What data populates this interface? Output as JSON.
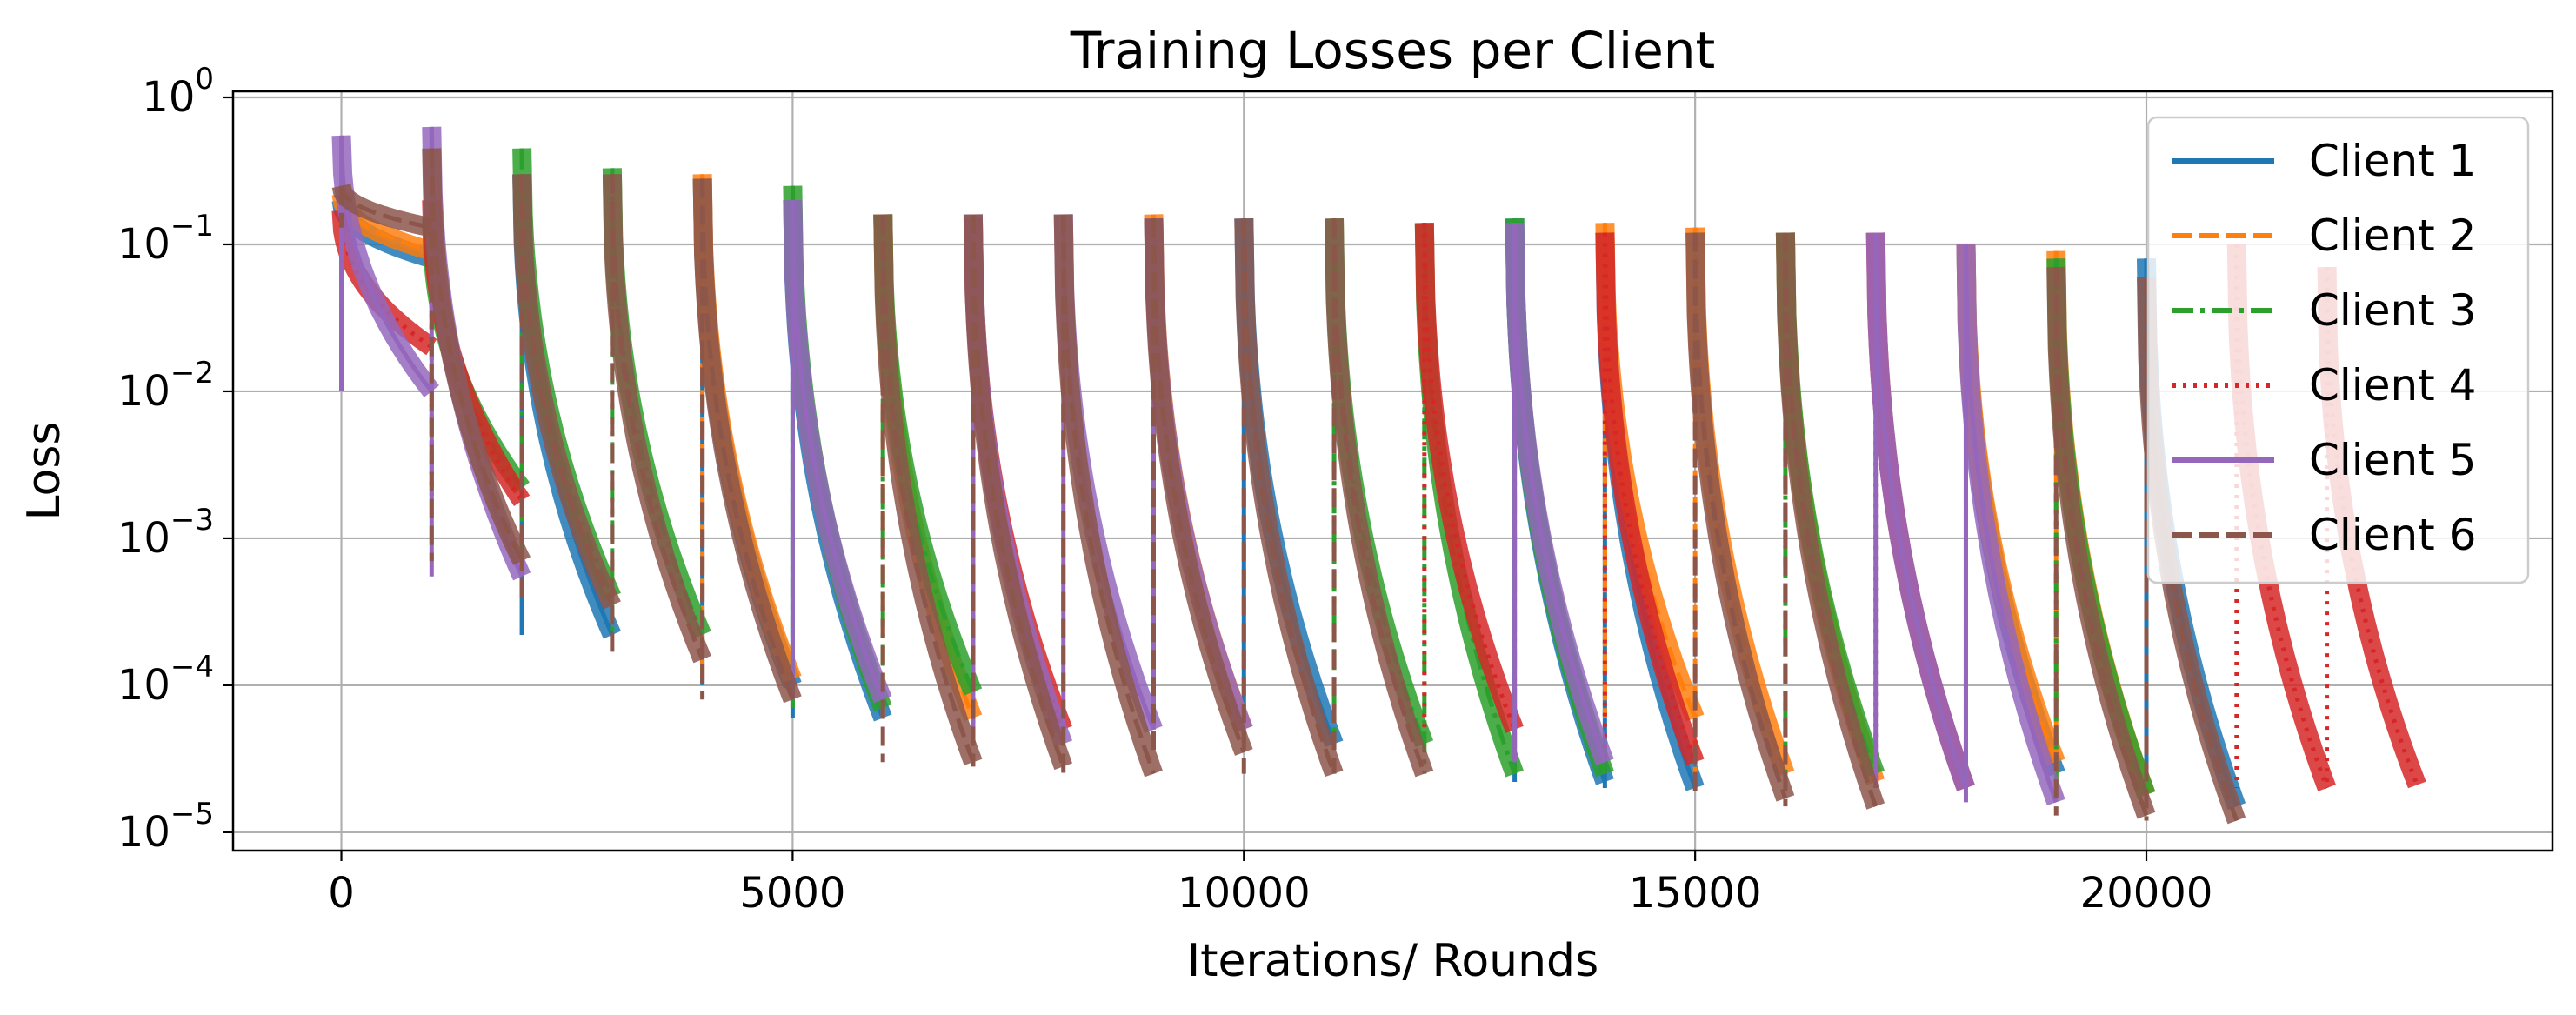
{
  "chart_data": {
    "type": "line",
    "title": "Training Losses per Client",
    "xlabel": "Iterations/ Rounds",
    "ylabel": "Loss",
    "yscale": "log",
    "grid": true,
    "legend_position": "top-right",
    "xlim": [
      -1200,
      24500
    ],
    "ylim": [
      7.5e-06,
      1.1
    ],
    "x_ticks": [
      {
        "value": 0,
        "label": "0"
      },
      {
        "value": 5000,
        "label": "5000"
      },
      {
        "value": 10000,
        "label": "10000"
      },
      {
        "value": 15000,
        "label": "15000"
      },
      {
        "value": 20000,
        "label": "20000"
      }
    ],
    "y_ticks": [
      {
        "value": 1,
        "base": "10",
        "exp": "0"
      },
      {
        "value": 0.1,
        "base": "10",
        "exp": "−1"
      },
      {
        "value": 0.01,
        "base": "10",
        "exp": "−2"
      },
      {
        "value": 0.001,
        "base": "10",
        "exp": "−3"
      },
      {
        "value": 0.0001,
        "base": "10",
        "exp": "−4"
      },
      {
        "value": 1e-05,
        "base": "10",
        "exp": "−5"
      }
    ],
    "series": [
      {
        "name": "Client 1",
        "color": "#1f77b4",
        "dash": "solid",
        "segments": [
          [
            0,
            1000,
            0.2,
            0.08
          ],
          [
            2000,
            3000,
            0.3,
            0.00022
          ],
          [
            4000,
            5000,
            0.28,
            0.0001
          ],
          [
            5000,
            6000,
            0.2,
            6e-05
          ],
          [
            10000,
            11000,
            0.15,
            4e-05
          ],
          [
            13000,
            14000,
            0.15,
            2.2e-05
          ],
          [
            14000,
            15000,
            0.12,
            2e-05
          ],
          [
            18000,
            19000,
            0.1,
            2.5e-05
          ],
          [
            20000,
            21000,
            0.08,
            1.5e-05
          ]
        ]
      },
      {
        "name": "Client 2",
        "color": "#ff7f0e",
        "dash": "dashed",
        "segments": [
          [
            0,
            1000,
            0.22,
            0.09
          ],
          [
            4000,
            5000,
            0.3,
            0.00011
          ],
          [
            6000,
            7000,
            0.16,
            6e-05
          ],
          [
            9000,
            10000,
            0.16,
            5e-05
          ],
          [
            14000,
            15000,
            0.14,
            6e-05
          ],
          [
            15000,
            16000,
            0.13,
            2.5e-05
          ],
          [
            16000,
            17000,
            0.12,
            2.2e-05
          ],
          [
            18000,
            19000,
            0.1,
            3e-05
          ],
          [
            19000,
            20000,
            0.09,
            1.8e-05
          ]
        ]
      },
      {
        "name": "Client 3",
        "color": "#2ca02c",
        "dash": "dashdot",
        "segments": [
          [
            1000,
            2000,
            0.15,
            0.0022
          ],
          [
            2000,
            3000,
            0.45,
            0.0004
          ],
          [
            3000,
            4000,
            0.33,
            0.00022
          ],
          [
            5000,
            6000,
            0.25,
            7e-05
          ],
          [
            6000,
            7000,
            0.16,
            9e-05
          ],
          [
            11000,
            12000,
            0.15,
            4e-05
          ],
          [
            12000,
            13000,
            0.14,
            2.5e-05
          ],
          [
            13000,
            14000,
            0.15,
            2.5e-05
          ],
          [
            16000,
            17000,
            0.12,
            2.5e-05
          ],
          [
            19000,
            20000,
            0.08,
            1.8e-05
          ]
        ]
      },
      {
        "name": "Client 4",
        "color": "#d62728",
        "dash": "dotted",
        "segments": [
          [
            0,
            1000,
            0.17,
            0.02
          ],
          [
            1000,
            2000,
            0.2,
            0.0018
          ],
          [
            7000,
            8000,
            0.15,
            5e-05
          ],
          [
            12000,
            13000,
            0.14,
            5e-05
          ],
          [
            14000,
            15000,
            0.12,
            3e-05
          ],
          [
            17000,
            18000,
            0.12,
            2e-05
          ],
          [
            21000,
            22000,
            0.1,
            2e-05
          ],
          [
            22000,
            23000,
            0.07,
            2.1e-05
          ]
        ]
      },
      {
        "name": "Client 5",
        "color": "#9467bd",
        "dash": "solid",
        "segments": [
          [
            0,
            1000,
            0.55,
            0.01
          ],
          [
            1000,
            2000,
            0.63,
            0.00055
          ],
          [
            5000,
            6000,
            0.2,
            8e-05
          ],
          [
            7000,
            8000,
            0.16,
            4e-05
          ],
          [
            8000,
            9000,
            0.16,
            5e-05
          ],
          [
            9000,
            10000,
            0.15,
            5e-05
          ],
          [
            13000,
            14000,
            0.14,
            3e-05
          ],
          [
            17000,
            18000,
            0.12,
            2e-05
          ],
          [
            18000,
            19000,
            0.1,
            1.6e-05
          ]
        ]
      },
      {
        "name": "Client 6",
        "color": "#8c564b",
        "dash": "dashed",
        "segments": [
          [
            0,
            1000,
            0.25,
            0.13
          ],
          [
            1000,
            2000,
            0.45,
            0.0007
          ],
          [
            2000,
            3000,
            0.3,
            0.00035
          ],
          [
            3000,
            4000,
            0.3,
            0.00015
          ],
          [
            4000,
            5000,
            0.28,
            8e-05
          ],
          [
            6000,
            7000,
            0.16,
            3e-05
          ],
          [
            7000,
            8000,
            0.16,
            2.8e-05
          ],
          [
            8000,
            9000,
            0.16,
            2.5e-05
          ],
          [
            9000,
            10000,
            0.15,
            3.5e-05
          ],
          [
            10000,
            11000,
            0.15,
            2.5e-05
          ],
          [
            11000,
            12000,
            0.15,
            2.5e-05
          ],
          [
            15000,
            16000,
            0.12,
            1.7e-05
          ],
          [
            16000,
            17000,
            0.12,
            1.5e-05
          ],
          [
            19000,
            20000,
            0.07,
            1.3e-05
          ],
          [
            20000,
            21000,
            0.06,
            1.2e-05
          ]
        ]
      }
    ]
  }
}
